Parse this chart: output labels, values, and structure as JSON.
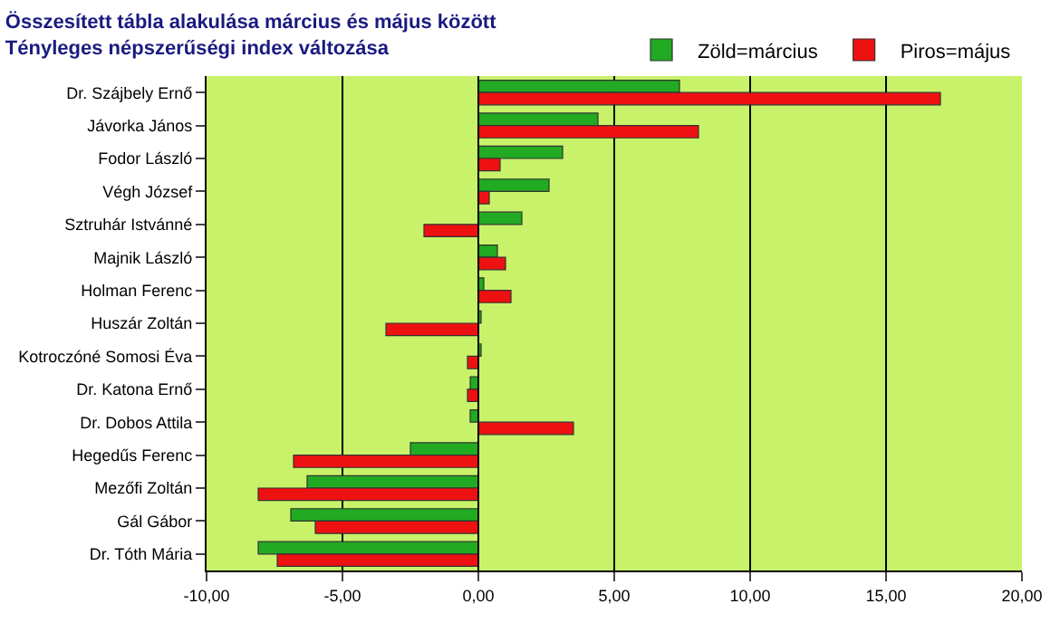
{
  "chart_data": {
    "type": "bar",
    "orientation": "horizontal",
    "title": "Összesített tábla alakulása március és május között",
    "subtitle": "Tényleges népszerűségi index változása",
    "categories": [
      "Dr. Szájbely Ernő",
      "Jávorka János",
      "Fodor László",
      "Végh József",
      "Sztruhár Istvánné",
      "Majnik László",
      "Holman Ferenc",
      "Huszár Zoltán",
      "Kotroczóné Somosi Éva",
      "Dr. Katona Ernő",
      "Dr. Dobos Attila",
      "Hegedűs Ferenc",
      "Mezőfi Zoltán",
      "Gál Gábor",
      "Dr. Tóth Mária"
    ],
    "series": [
      {
        "name": "Zöld=március",
        "color": "#22aa22",
        "values": [
          7.4,
          4.4,
          3.1,
          2.6,
          1.6,
          0.7,
          0.2,
          0.1,
          0.1,
          -0.3,
          -0.3,
          -2.5,
          -6.3,
          -6.9,
          -8.1
        ]
      },
      {
        "name": "Piros=május",
        "color": "#ee1111",
        "values": [
          17.0,
          8.1,
          0.8,
          0.4,
          -2.0,
          1.0,
          1.2,
          -3.4,
          -0.4,
          -0.4,
          3.5,
          -6.8,
          -8.1,
          -6.0,
          -7.4
        ]
      }
    ],
    "xlim": [
      -10,
      20
    ],
    "xticks": [
      {
        "value": -10,
        "label": "-10,00"
      },
      {
        "value": -5,
        "label": "-5,00"
      },
      {
        "value": 0,
        "label": "0,00"
      },
      {
        "value": 5,
        "label": "5,00"
      },
      {
        "value": 10,
        "label": "10,00"
      },
      {
        "value": 15,
        "label": "15,00"
      },
      {
        "value": 20,
        "label": "20,00"
      }
    ],
    "grid": "x",
    "legend": "top right"
  }
}
